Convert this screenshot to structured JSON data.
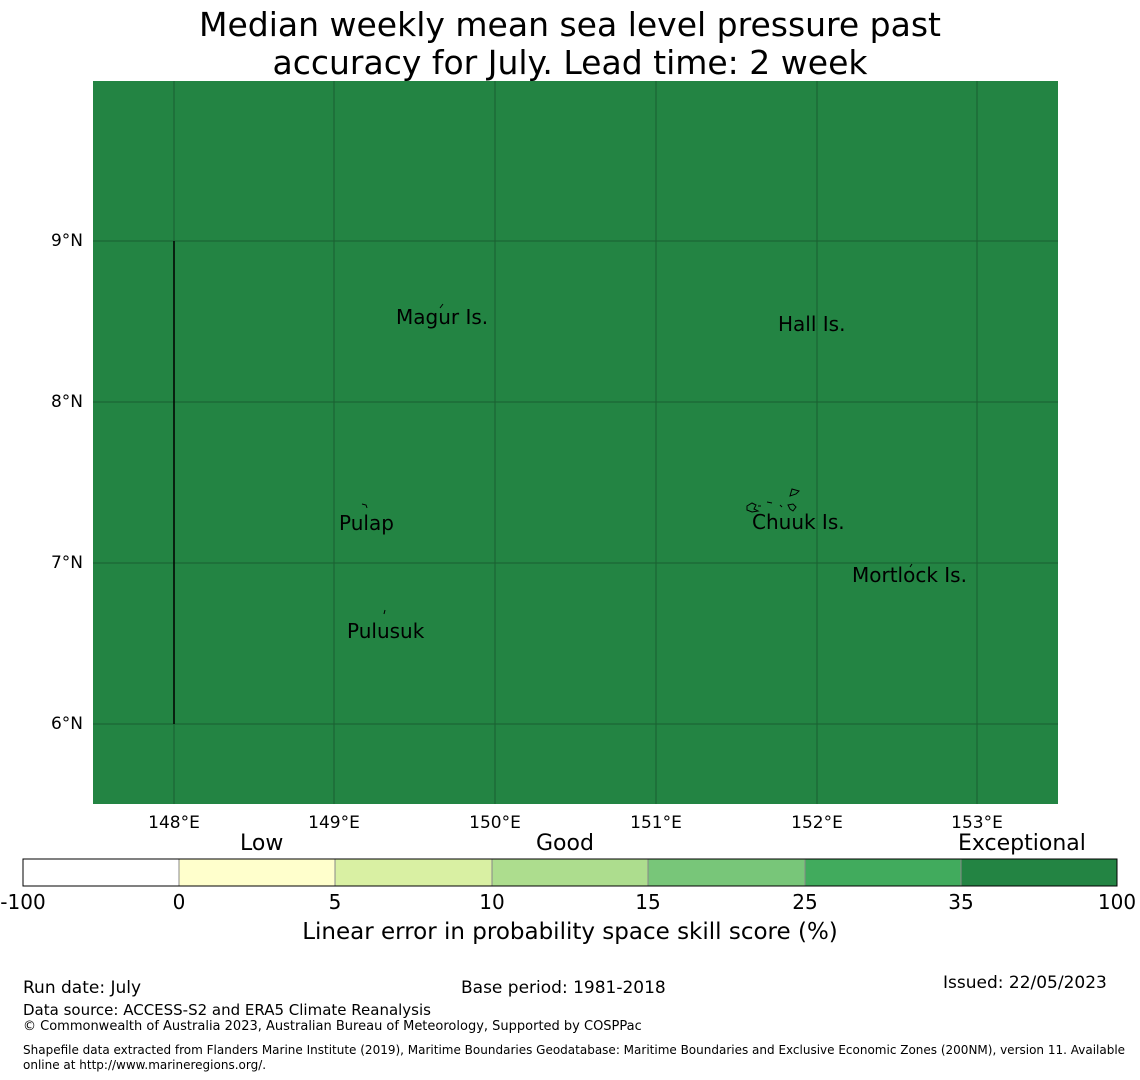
{
  "title_line1": "Median weekly mean sea level pressure past",
  "title_line2": "accuracy for July. Lead time: 2 week",
  "map": {
    "fill_color": "#238443",
    "grid_color": "#1a5e30",
    "lat_labels": [
      "9°N",
      "8°N",
      "7°N",
      "6°N"
    ],
    "lon_labels": [
      "148°E",
      "149°E",
      "150°E",
      "151°E",
      "152°E",
      "153°E"
    ],
    "places": {
      "magur": "Magur Is.",
      "hall": "Hall Is.",
      "pulap": "Pulap",
      "chuuk": "Chuuk Is.",
      "mortlock": "Mortlock Is.",
      "pulusuk": "Pulusuk"
    }
  },
  "colorbar": {
    "categories": [
      "Low",
      "Good",
      "Exceptional"
    ],
    "ticks": [
      "-100",
      "0",
      "5",
      "10",
      "15",
      "25",
      "35",
      "100"
    ],
    "colors": [
      "#ffffff",
      "#ffffcc",
      "#d9f0a3",
      "#addd8e",
      "#78c679",
      "#41ab5d",
      "#238443"
    ],
    "label": "Linear error in probability space skill score (%)"
  },
  "footer": {
    "run_date": "Run date: July",
    "base_period": "Base period: 1981-2018",
    "issued": "Issued: 22/05/2023",
    "data_source": "Data source: ACCESS-S2 and ERA5 Climate Reanalysis",
    "copyright": "© Commonwealth of Australia 2023, Australian Bureau of Meteorology, Supported by COSPPac",
    "shapefile_line1": "Shapefile data extracted from Flanders Marine Institute (2019), Maritime Boundaries Geodatabase: Maritime Boundaries and Exclusive Economic Zones (200NM), version 11. Available",
    "shapefile_line2": "online at http://www.marineregions.org/."
  }
}
